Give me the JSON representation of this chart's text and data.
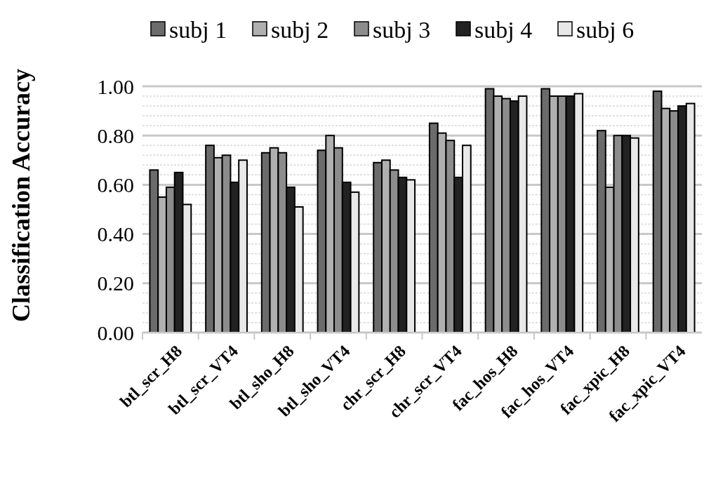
{
  "chart_data": {
    "type": "bar",
    "ylabel": "Classification Accuracy",
    "categories": [
      "btl_scr_H8",
      "btl_scr_VT4",
      "btl_sho_H8",
      "btl_sho_VT4",
      "chr_scr_H8",
      "chr_scr_VT4",
      "fac_hos_H8",
      "fac_hos_VT4",
      "fac_xpic_H8",
      "fac_xpic_VT4"
    ],
    "series": [
      {
        "name": "subj 1",
        "color": "#6b6b6b",
        "values": [
          0.66,
          0.76,
          0.73,
          0.74,
          0.69,
          0.85,
          0.99,
          0.99,
          0.82,
          0.98
        ]
      },
      {
        "name": "subj 2",
        "color": "#b0b0b0",
        "values": [
          0.55,
          0.71,
          0.75,
          0.8,
          0.7,
          0.81,
          0.96,
          0.96,
          0.59,
          0.91
        ]
      },
      {
        "name": "subj 3",
        "color": "#8c8c8c",
        "values": [
          0.59,
          0.72,
          0.73,
          0.75,
          0.66,
          0.78,
          0.95,
          0.96,
          0.8,
          0.9
        ]
      },
      {
        "name": "subj 4",
        "color": "#222222",
        "values": [
          0.65,
          0.61,
          0.59,
          0.61,
          0.63,
          0.63,
          0.94,
          0.96,
          0.8,
          0.92
        ]
      },
      {
        "name": "subj 6",
        "color": "#e8e8e8",
        "values": [
          0.52,
          0.7,
          0.51,
          0.57,
          0.62,
          0.76,
          0.96,
          0.97,
          0.79,
          0.93
        ]
      }
    ],
    "ylim": [
      0,
      1
    ],
    "yticks": [
      {
        "value": 0,
        "label": "0.00"
      },
      {
        "value": 0.2,
        "label": "0.20"
      },
      {
        "value": 0.4,
        "label": "0.40"
      },
      {
        "value": 0.6,
        "label": "0.60"
      },
      {
        "value": 0.8,
        "label": "0.80"
      },
      {
        "value": 1,
        "label": "1.00"
      }
    ],
    "grid": true,
    "legend": "top"
  }
}
